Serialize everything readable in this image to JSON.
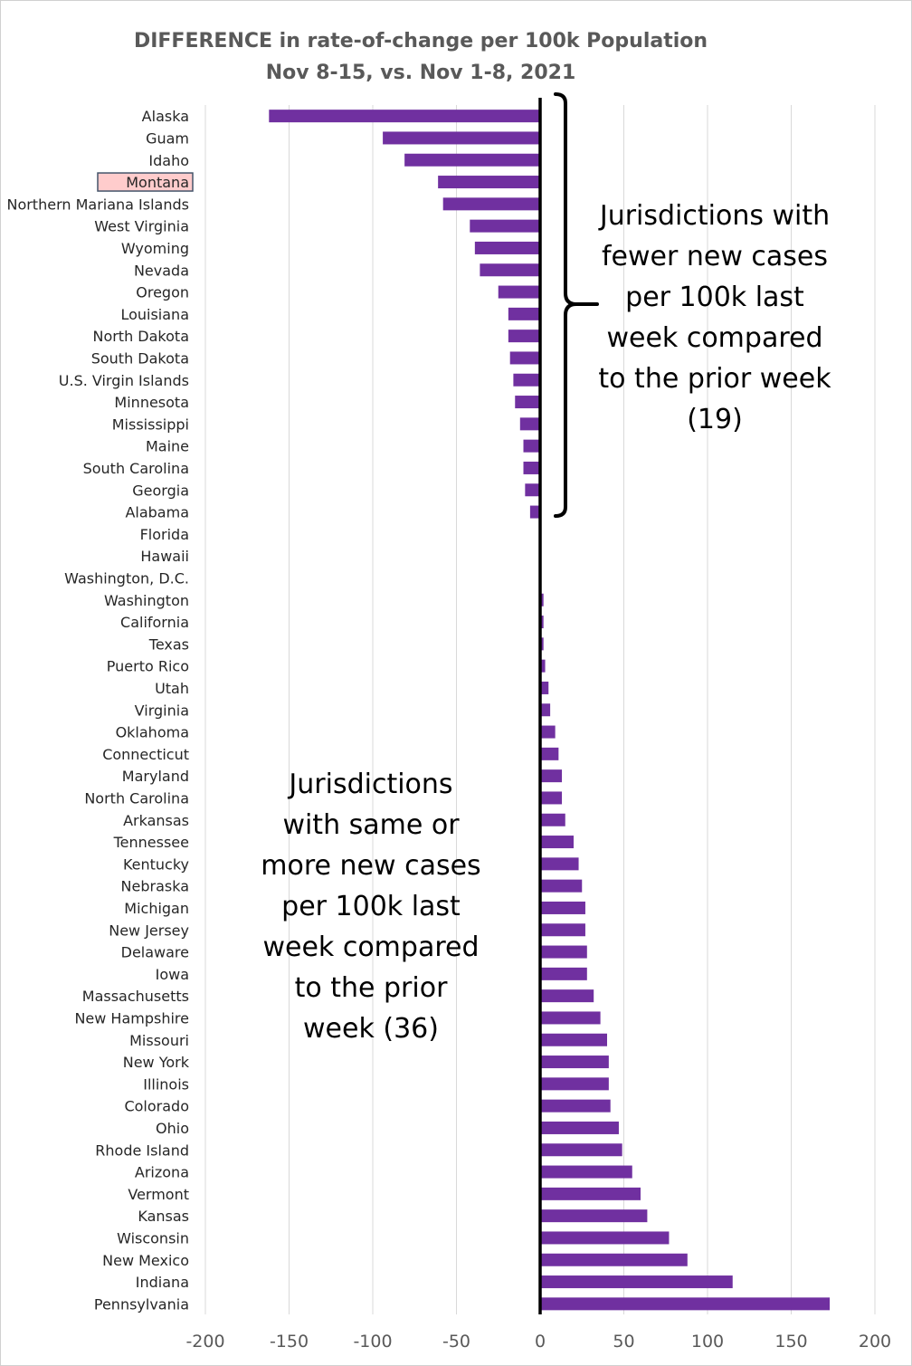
{
  "chart_data": {
    "type": "bar",
    "orientation": "horizontal",
    "title": "DIFFERENCE in rate-of-change per 100k Population",
    "subtitle": "Nov 8-15, vs. Nov 1-8, 2021",
    "xlabel": "",
    "ylabel": "",
    "xlim": [
      -200,
      200
    ],
    "xticks": [
      -200,
      -150,
      -100,
      -50,
      0,
      50,
      100,
      150,
      200
    ],
    "grid": true,
    "legend": "none",
    "bar_color": "#7030a0",
    "highlight_label": "Montana",
    "highlight_fill": "#ffcccc",
    "highlight_border": "#44546a",
    "categories": [
      "Alaska",
      "Guam",
      "Idaho",
      "Montana",
      "Northern Mariana Islands",
      "West Virginia",
      "Wyoming",
      "Nevada",
      "Oregon",
      "Louisiana",
      "North Dakota",
      "South Dakota",
      "U.S. Virgin Islands",
      "Minnesota",
      "Mississippi",
      "Maine",
      "South Carolina",
      "Georgia",
      "Alabama",
      "Florida",
      "Hawaii",
      "Washington, D.C.",
      "Washington",
      "California",
      "Texas",
      "Puerto Rico",
      "Utah",
      "Virginia",
      "Oklahoma",
      "Connecticut",
      "Maryland",
      "North Carolina",
      "Arkansas",
      "Tennessee",
      "Kentucky",
      "Nebraska",
      "Michigan",
      "New Jersey",
      "Delaware",
      "Iowa",
      "Massachusetts",
      "New Hampshire",
      "Missouri",
      "New York",
      "Illinois",
      "Colorado",
      "Ohio",
      "Rhode Island",
      "Arizona",
      "Vermont",
      "Kansas",
      "Wisconsin",
      "New Mexico",
      "Indiana",
      "Pennsylvania"
    ],
    "values": [
      -162,
      -94,
      -81,
      -61,
      -58,
      -42,
      -39,
      -36,
      -25,
      -19,
      -19,
      -18,
      -16,
      -15,
      -12,
      -10,
      -10,
      -9,
      -6,
      0,
      0,
      0,
      2,
      2,
      2,
      3,
      5,
      6,
      9,
      11,
      13,
      13,
      15,
      20,
      23,
      25,
      27,
      27,
      28,
      28,
      32,
      36,
      40,
      41,
      41,
      42,
      47,
      49,
      55,
      60,
      64,
      77,
      88,
      115,
      173
    ]
  },
  "annotations": {
    "fewer": {
      "lines": [
        "Jurisdictions with",
        "fewer new cases",
        "per 100k last",
        "week compared",
        "to the prior week",
        "(19)"
      ]
    },
    "more": {
      "lines": [
        "Jurisdictions",
        "with same or",
        "more new cases",
        "per 100k last",
        "week compared",
        "to the prior",
        "week (36)"
      ]
    }
  },
  "colors": {
    "title": "#595959",
    "axis_text": "#595959",
    "category_text": "#262626",
    "grid": "#d9d9d9",
    "zero_line": "#000000"
  }
}
